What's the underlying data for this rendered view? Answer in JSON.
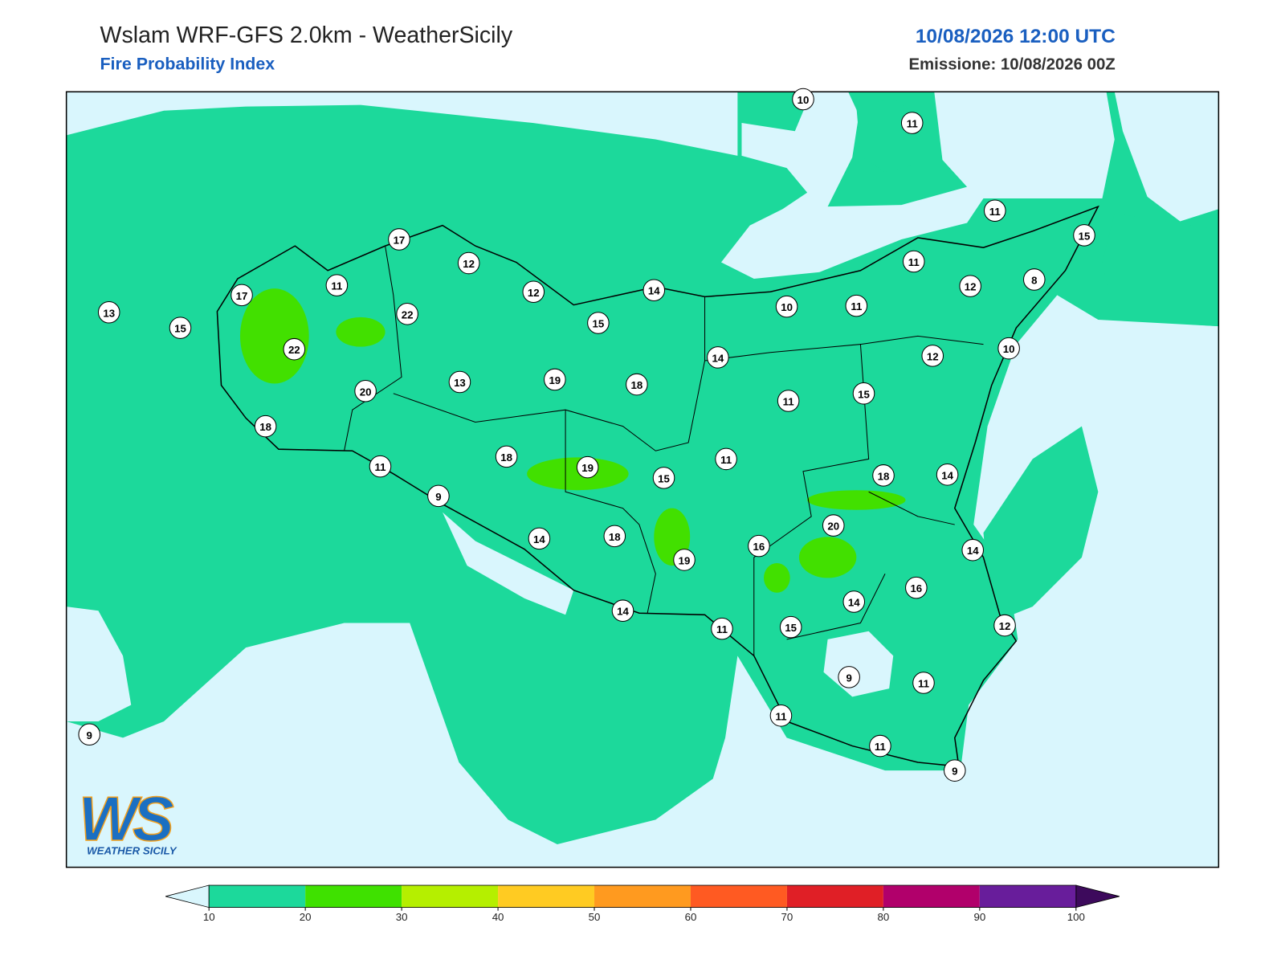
{
  "header": {
    "title": "Wslam WRF-GFS 2.0km - WeatherSicily",
    "subtitle": "Fire Probability Index",
    "valid_time": "10/08/2026 12:00 UTC",
    "issued": "Emissione: 10/08/2026 00Z"
  },
  "stations": {
    "values": [
      10,
      11,
      11,
      15,
      17,
      12,
      11,
      8,
      12,
      11,
      12,
      14,
      17,
      22,
      10,
      11,
      13,
      15,
      15,
      22,
      14,
      12,
      10,
      13,
      19,
      18,
      20,
      11,
      15,
      18,
      18,
      11,
      11,
      19,
      15,
      18,
      14,
      9,
      20,
      14,
      18,
      16,
      19,
      14,
      16,
      14,
      14,
      11,
      15,
      12,
      9,
      11,
      11,
      11,
      9,
      9
    ]
  },
  "colorbar": {
    "ticks": [
      10,
      20,
      30,
      40,
      50,
      60,
      70,
      80,
      90,
      100
    ],
    "colors": [
      "#1cd99b",
      "#3fe100",
      "#b5ef00",
      "#ffcb22",
      "#ff9a1f",
      "#ff5a22",
      "#e01f26",
      "#b1006b",
      "#681d9b"
    ],
    "under_color": "#d9f6fd",
    "over_color": "#3d0a5c"
  },
  "logo": {
    "initials": "WS",
    "name": "WEATHER SICILY"
  }
}
